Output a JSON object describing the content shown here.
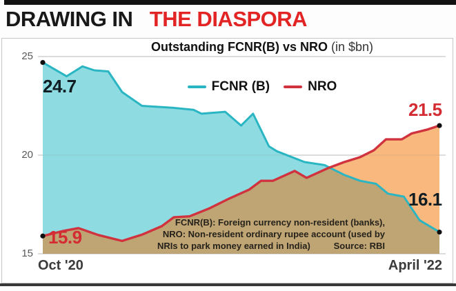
{
  "headline": {
    "black": "DRAWING IN",
    "red": "THE DIASPORA"
  },
  "chart": {
    "title_bold": "Outstanding FCNR(B) vs NRO",
    "title_unit": "(in $bn)",
    "x_start": "Oct '20",
    "x_end": "April '22",
    "labels": {
      "fcnr_start": "24.7",
      "nro_start": "15.9",
      "nro_end": "21.5",
      "fcnr_end": "16.1"
    },
    "footnote": {
      "line1": "FCNR(B): Foreign currency non-resident (banks),",
      "line2": "NRO: Non-resident ordinary rupee account (used by",
      "line3": "NRIs to park money earned in India)",
      "source": "Source: RBI"
    }
  },
  "chart_data": {
    "type": "area",
    "title": "Outstanding FCNR(B) vs NRO (in $bn)",
    "x_range": [
      "Oct '20",
      "April '22"
    ],
    "ylim": [
      15,
      25
    ],
    "yticks": [
      25,
      20,
      15
    ],
    "grid": true,
    "legend_position": "top-center",
    "overlap_fill_color": "#bfa474",
    "dot_color": "#101010",
    "gridline_color": "#c9c9c9",
    "series": [
      {
        "name": "FCNR (B)",
        "line_color": "#2ab5c3",
        "fill_color": "#8edce1",
        "start_value": 24.7,
        "end_value": 16.1,
        "points": [
          [
            0.0,
            24.7
          ],
          [
            0.06,
            24.0
          ],
          [
            0.1,
            24.5
          ],
          [
            0.13,
            24.3
          ],
          [
            0.165,
            24.25
          ],
          [
            0.2,
            23.2
          ],
          [
            0.25,
            22.5
          ],
          [
            0.33,
            22.4
          ],
          [
            0.38,
            22.3
          ],
          [
            0.4,
            22.1
          ],
          [
            0.46,
            22.2
          ],
          [
            0.5,
            21.5
          ],
          [
            0.53,
            22.1
          ],
          [
            0.57,
            20.45
          ],
          [
            0.59,
            20.2
          ],
          [
            0.66,
            19.65
          ],
          [
            0.71,
            19.5
          ],
          [
            0.76,
            19.0
          ],
          [
            0.8,
            18.7
          ],
          [
            0.84,
            18.55
          ],
          [
            0.87,
            18.05
          ],
          [
            0.91,
            17.9
          ],
          [
            0.95,
            16.7
          ],
          [
            1.0,
            16.1
          ]
        ]
      },
      {
        "name": "NRO",
        "line_color": "#d0323e",
        "fill_color": "#f9b87e",
        "start_value": 15.9,
        "end_value": 21.5,
        "points": [
          [
            0.0,
            15.9
          ],
          [
            0.05,
            16.15
          ],
          [
            0.09,
            16.3
          ],
          [
            0.14,
            15.95
          ],
          [
            0.2,
            15.65
          ],
          [
            0.25,
            15.97
          ],
          [
            0.3,
            16.4
          ],
          [
            0.33,
            16.85
          ],
          [
            0.37,
            16.9
          ],
          [
            0.42,
            17.3
          ],
          [
            0.47,
            17.8
          ],
          [
            0.52,
            18.25
          ],
          [
            0.55,
            18.7
          ],
          [
            0.58,
            18.7
          ],
          [
            0.635,
            19.2
          ],
          [
            0.665,
            18.85
          ],
          [
            0.72,
            19.35
          ],
          [
            0.76,
            19.65
          ],
          [
            0.8,
            19.9
          ],
          [
            0.835,
            20.25
          ],
          [
            0.865,
            20.8
          ],
          [
            0.905,
            20.8
          ],
          [
            0.93,
            21.1
          ],
          [
            0.97,
            21.3
          ],
          [
            1.0,
            21.5
          ]
        ]
      }
    ]
  }
}
